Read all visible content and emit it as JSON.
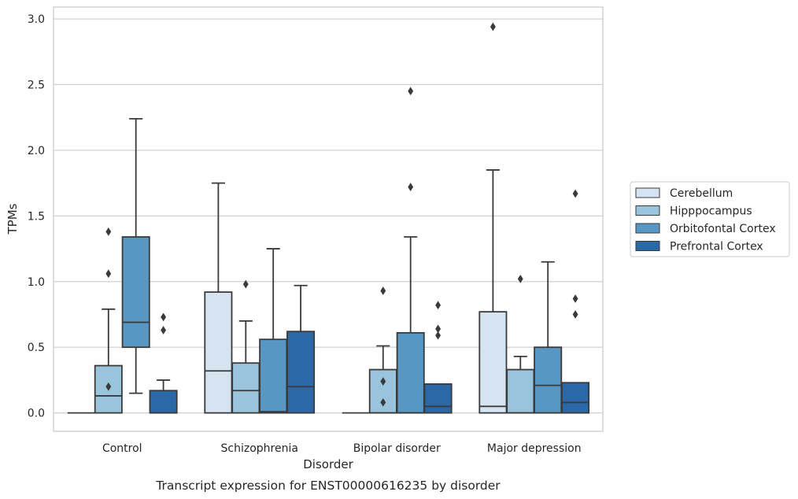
{
  "chart_data": {
    "type": "box",
    "xlabel": "Disorder",
    "ylabel": "TPMs",
    "caption": "Transcript expression for ENST00000616235 by disorder",
    "ylim": [
      -0.14,
      3.09
    ],
    "yticks": [
      "0.0",
      "0.5",
      "1.0",
      "1.5",
      "2.0",
      "2.5",
      "3.0"
    ],
    "ytick_values": [
      0,
      0.5,
      1.0,
      1.5,
      2.0,
      2.5,
      3.0
    ],
    "grid": true,
    "legend_position": "right",
    "categories": [
      "Control",
      "Schizophrenia",
      "Bipolar disorder",
      "Major depression"
    ],
    "series": [
      {
        "name": "Cerebellum",
        "color": "#d6e4f1",
        "boxes": [
          {
            "q1": 0.0,
            "median": 0.0,
            "q3": 0.0,
            "whisker_low": 0.0,
            "whisker_high": 0.0,
            "outliers": []
          },
          {
            "q1": 0.0,
            "median": 0.32,
            "q3": 0.92,
            "whisker_low": 0.0,
            "whisker_high": 1.75,
            "outliers": []
          },
          {
            "q1": 0.0,
            "median": 0.0,
            "q3": 0.0,
            "whisker_low": 0.0,
            "whisker_high": 0.0,
            "outliers": []
          },
          {
            "q1": 0.0,
            "median": 0.05,
            "q3": 0.77,
            "whisker_low": 0.0,
            "whisker_high": 1.85,
            "outliers": [
              2.94
            ]
          }
        ]
      },
      {
        "name": "Hipppocampus",
        "color": "#9ac4dc",
        "boxes": [
          {
            "q1": 0.0,
            "median": 0.13,
            "q3": 0.36,
            "whisker_low": 0.0,
            "whisker_high": 0.79,
            "outliers": [
              0.2,
              1.06,
              1.38
            ]
          },
          {
            "q1": 0.0,
            "median": 0.17,
            "q3": 0.38,
            "whisker_low": 0.0,
            "whisker_high": 0.7,
            "outliers": [
              0.98
            ]
          },
          {
            "q1": 0.0,
            "median": 0.0,
            "q3": 0.33,
            "whisker_low": 0.0,
            "whisker_high": 0.51,
            "outliers": [
              0.08,
              0.24,
              0.93
            ]
          },
          {
            "q1": 0.0,
            "median": 0.0,
            "q3": 0.33,
            "whisker_low": 0.0,
            "whisker_high": 0.43,
            "outliers": [
              1.02
            ]
          }
        ]
      },
      {
        "name": "Orbitofontal Cortex",
        "color": "#5896c3",
        "boxes": [
          {
            "q1": 0.5,
            "median": 0.69,
            "q3": 1.34,
            "whisker_low": 0.15,
            "whisker_high": 2.24,
            "outliers": []
          },
          {
            "q1": 0.0,
            "median": 0.01,
            "q3": 0.56,
            "whisker_low": 0.0,
            "whisker_high": 1.25,
            "outliers": []
          },
          {
            "q1": 0.0,
            "median": 0.0,
            "q3": 0.61,
            "whisker_low": 0.0,
            "whisker_high": 1.34,
            "outliers": [
              1.72,
              2.45
            ]
          },
          {
            "q1": 0.0,
            "median": 0.21,
            "q3": 0.5,
            "whisker_low": 0.0,
            "whisker_high": 1.15,
            "outliers": []
          }
        ]
      },
      {
        "name": "Prefrontal Cortex",
        "color": "#2a68a8",
        "boxes": [
          {
            "q1": 0.0,
            "median": 0.0,
            "q3": 0.17,
            "whisker_low": 0.0,
            "whisker_high": 0.25,
            "outliers": [
              0.63,
              0.73
            ]
          },
          {
            "q1": 0.0,
            "median": 0.2,
            "q3": 0.62,
            "whisker_low": 0.0,
            "whisker_high": 0.97,
            "outliers": []
          },
          {
            "q1": 0.0,
            "median": 0.05,
            "q3": 0.22,
            "whisker_low": 0.0,
            "whisker_high": 0.22,
            "outliers": [
              0.59,
              0.64,
              0.82
            ]
          },
          {
            "q1": 0.0,
            "median": 0.08,
            "q3": 0.23,
            "whisker_low": 0.0,
            "whisker_high": 0.23,
            "outliers": [
              0.75,
              0.87,
              1.67
            ]
          }
        ]
      }
    ]
  }
}
